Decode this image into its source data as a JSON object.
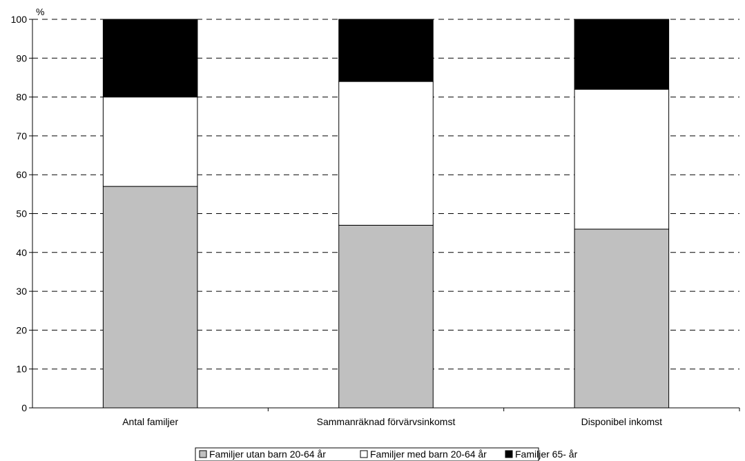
{
  "chart_data": {
    "type": "bar",
    "stacked": true,
    "unit_label": "%",
    "ylim": [
      0,
      100
    ],
    "yticks": [
      0,
      10,
      20,
      30,
      40,
      50,
      60,
      70,
      80,
      90,
      100
    ],
    "grid": "horizontal-dashed",
    "legend_position": "bottom-center",
    "categories": [
      "Antal familjer",
      "Sammanräknad förvärvsinkomst",
      "Disponibel inkomst"
    ],
    "series": [
      {
        "name": "Familjer utan barn 20-64 år",
        "color": "#c0c0c0",
        "values": [
          57,
          47,
          46
        ]
      },
      {
        "name": "Familjer med barn 20-64 år",
        "color": "#ffffff",
        "values": [
          23,
          37,
          36
        ]
      },
      {
        "name": "Familjer 65- år",
        "color": "#000000",
        "values": [
          20,
          16,
          18
        ]
      }
    ]
  }
}
